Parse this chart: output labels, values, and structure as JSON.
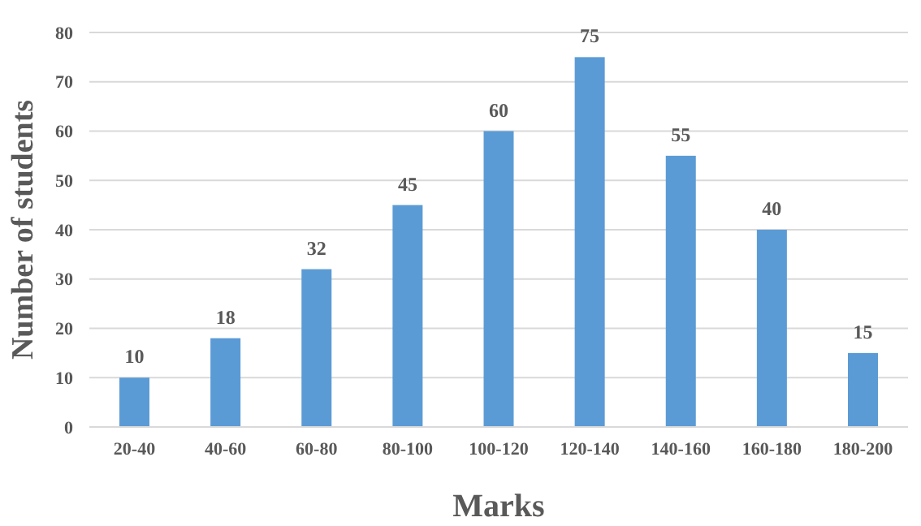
{
  "chart_data": {
    "type": "bar",
    "xlabel": "Marks",
    "ylabel": "Number of students",
    "categories": [
      "20-40",
      "40-60",
      "60-80",
      "80-100",
      "100-120",
      "120-140",
      "140-160",
      "160-180",
      "180-200"
    ],
    "values": [
      10,
      18,
      32,
      45,
      60,
      75,
      55,
      40,
      15
    ],
    "color": "#5b9bd5",
    "ylim": [
      0,
      80
    ],
    "yticks": [
      0,
      10,
      20,
      30,
      40,
      50,
      60,
      70,
      80
    ],
    "grid": "y",
    "data_labels": true
  }
}
